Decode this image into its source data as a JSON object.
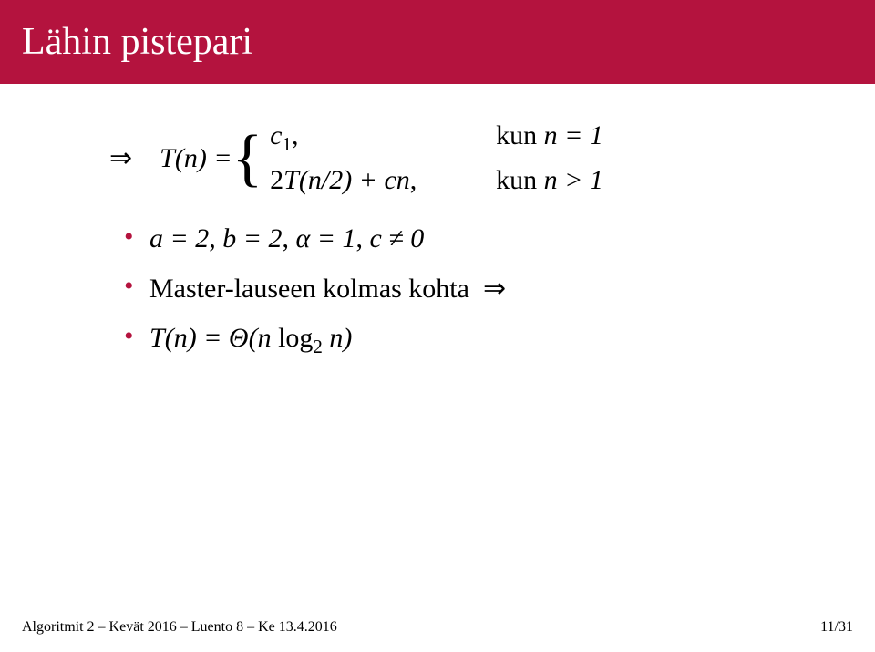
{
  "colors": {
    "header_bg": "#b4133e",
    "bullet": "#b4133e",
    "text": "#000000",
    "title": "#ffffff"
  },
  "typography": {
    "title_fontsize": 42,
    "body_fontsize": 30,
    "footer_fontsize": 16
  },
  "title": "Lähin pistepari",
  "equation": {
    "lhs": "T(n) = ",
    "case1_left": "c₁,",
    "case1_right": "kun n = 1",
    "case2_left": "2T(n/2) + cn,",
    "case2_right": "kun n > 1"
  },
  "bullets": [
    "a = 2, b = 2, α = 1, c ≠ 0",
    "Master-lauseen kolmas kohta  ⇒",
    "T(n) = Θ(n log₂ n)"
  ],
  "footer": {
    "left": "Algoritmit 2 – Kevät 2016 – Luento 8 – Ke 13.4.2016",
    "right": "11/31"
  }
}
